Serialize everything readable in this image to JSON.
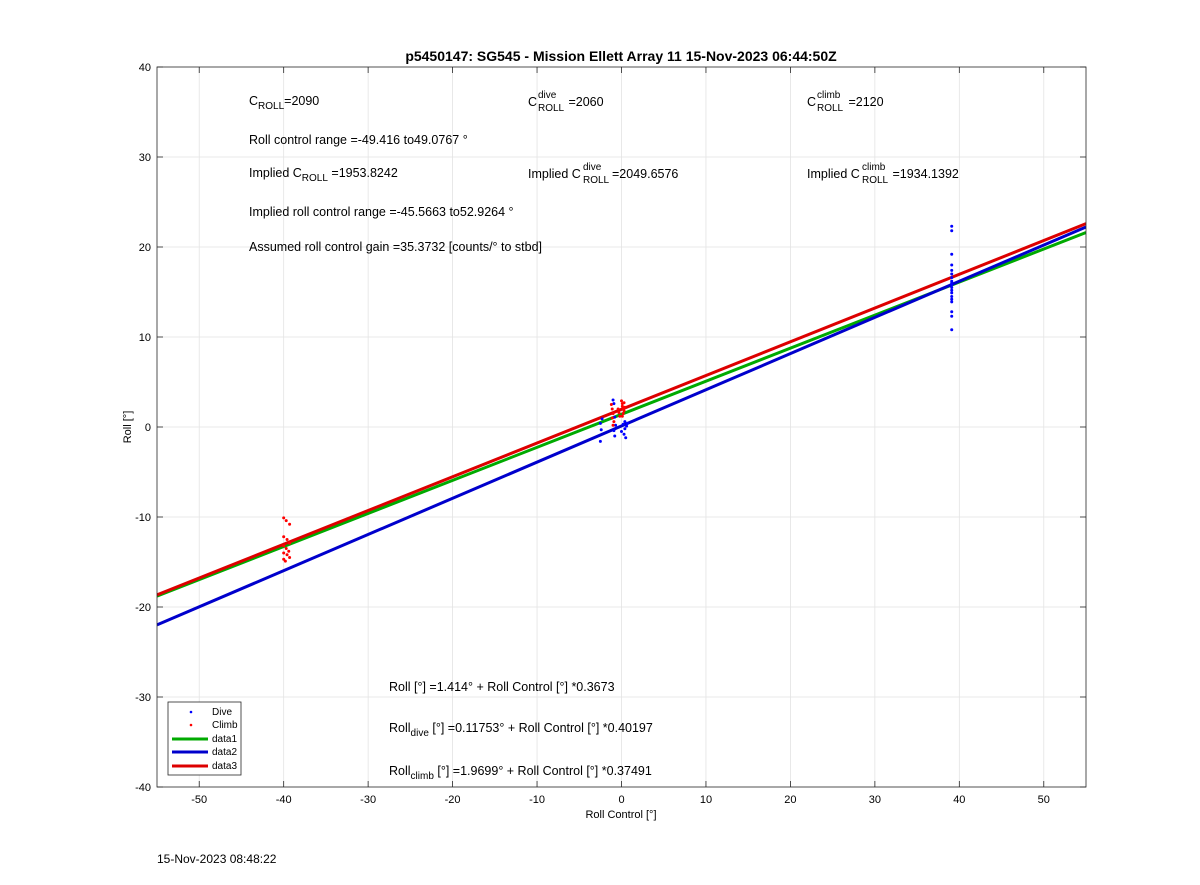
{
  "chart_data": {
    "type": "scatter",
    "title": "p5450147: SG545 - Mission Ellett Array 11 15-Nov-2023 06:44:50Z",
    "xlabel": "Roll Control [°]",
    "ylabel": "Roll [°]",
    "xlim": [
      -55,
      55
    ],
    "ylim": [
      -40,
      40
    ],
    "xticks": [
      -50,
      -40,
      -30,
      -20,
      -10,
      0,
      10,
      20,
      30,
      40,
      50
    ],
    "yticks": [
      -40,
      -30,
      -20,
      -10,
      0,
      10,
      20,
      30,
      40
    ],
    "grid": true,
    "legend_position": "bottom-left",
    "scatter_series": [
      {
        "name": "Dive",
        "color": "#0000ff",
        "points": [
          [
            39.1,
            22.3
          ],
          [
            39.1,
            21.8
          ],
          [
            39.1,
            19.2
          ],
          [
            39.1,
            18.0
          ],
          [
            39.1,
            17.4
          ],
          [
            39.1,
            17.0
          ],
          [
            39.1,
            16.6
          ],
          [
            39.1,
            16.2
          ],
          [
            39.1,
            16.0
          ],
          [
            39.1,
            15.8
          ],
          [
            39.1,
            15.5
          ],
          [
            39.1,
            15.2
          ],
          [
            39.1,
            14.9
          ],
          [
            39.1,
            14.5
          ],
          [
            39.1,
            14.2
          ],
          [
            39.1,
            13.9
          ],
          [
            39.1,
            12.8
          ],
          [
            39.1,
            12.3
          ],
          [
            39.1,
            10.8
          ],
          [
            -2.5,
            0.4
          ],
          [
            -2.4,
            -0.3
          ],
          [
            -2.5,
            -1.6
          ],
          [
            -2.3,
            0.9
          ],
          [
            -1.0,
            3.0
          ],
          [
            -0.9,
            2.6
          ],
          [
            -0.8,
            1.1
          ],
          [
            -0.9,
            -0.4
          ],
          [
            -0.8,
            -1.0
          ],
          [
            -0.7,
            0.2
          ],
          [
            0.0,
            -0.5
          ],
          [
            0.2,
            0.3
          ],
          [
            0.3,
            -0.8
          ],
          [
            0.4,
            0.6
          ],
          [
            0.5,
            -1.2
          ],
          [
            0.6,
            0.1
          ],
          [
            0.7,
            0.4
          ],
          [
            0.4,
            -0.2
          ]
        ]
      },
      {
        "name": "Climb",
        "color": "#ff0000",
        "points": [
          [
            -40.0,
            -10.1
          ],
          [
            -39.7,
            -10.4
          ],
          [
            -39.3,
            -10.8
          ],
          [
            -40.0,
            -12.2
          ],
          [
            -39.6,
            -12.5
          ],
          [
            -39.3,
            -12.9
          ],
          [
            -40.0,
            -13.2
          ],
          [
            -39.7,
            -13.5
          ],
          [
            -39.4,
            -13.8
          ],
          [
            -40.0,
            -14.0
          ],
          [
            -39.6,
            -14.2
          ],
          [
            -39.3,
            -14.5
          ],
          [
            -40.0,
            -14.7
          ],
          [
            -39.8,
            -14.9
          ],
          [
            -1.2,
            2.5
          ],
          [
            -1.1,
            2.0
          ],
          [
            -1.0,
            1.5
          ],
          [
            -1.1,
            1.0
          ],
          [
            -0.9,
            0.6
          ],
          [
            -1.0,
            0.2
          ],
          [
            -0.4,
            2.0
          ],
          [
            -0.3,
            1.6
          ],
          [
            -0.2,
            1.2
          ],
          [
            0.0,
            2.9
          ],
          [
            0.1,
            2.6
          ],
          [
            0.1,
            2.3
          ],
          [
            0.2,
            2.0
          ],
          [
            0.3,
            1.8
          ],
          [
            0.2,
            1.5
          ],
          [
            0.1,
            1.2
          ],
          [
            0.3,
            2.7
          ],
          [
            0.4,
            2.2
          ]
        ]
      }
    ],
    "line_series": [
      {
        "name": "data1",
        "color": "#00aa00",
        "intercept": 1.414,
        "slope": 0.3673
      },
      {
        "name": "data2",
        "color": "#0000cc",
        "intercept": 0.11753,
        "slope": 0.40197
      },
      {
        "name": "data3",
        "color": "#dd0000",
        "intercept": 1.9699,
        "slope": 0.37491
      }
    ],
    "annotations": {
      "c_roll_main": "C",
      "c_roll_sub": "ROLL",
      "c_roll_val": "=2090",
      "c_roll_dive_main": "C",
      "c_roll_dive_sup": "dive",
      "c_roll_dive_sub": "ROLL",
      "c_roll_dive_val": " =2060",
      "c_roll_climb_main": "C",
      "c_roll_climb_sup": "climb",
      "c_roll_climb_sub": "ROLL",
      "c_roll_climb_val": " =2120",
      "range_text": "Roll control range =-49.416 to49.0767 °",
      "implied_c_prefix": "Implied C",
      "implied_c_sub": "ROLL",
      "implied_c_val": " =1953.8242",
      "implied_dive_prefix": "Implied C",
      "implied_dive_sup": "dive",
      "implied_dive_sub": "ROLL",
      "implied_dive_val": "=2049.6576",
      "implied_climb_prefix": "Implied C",
      "implied_climb_sup": "climb",
      "implied_climb_sub": "ROLL",
      "implied_climb_val": " =1934.1392",
      "implied_range_text": "Implied roll control range =-45.5663 to52.9264 °",
      "gain_text": "Assumed roll control gain =35.3732 [counts/° to stbd]",
      "eq_all": "Roll [°] =1.414° + Roll Control [°] *0.3673",
      "eq_dive_main": "Roll",
      "eq_dive_sub": "dive",
      "eq_dive_rest": " [°] =0.11753° + Roll Control [°] *0.40197",
      "eq_climb_main": "Roll",
      "eq_climb_sub": "climb",
      "eq_climb_rest": " [°] =1.9699° + Roll Control [°] *0.37491"
    }
  },
  "footer": {
    "timestamp": "15-Nov-2023 08:48:22"
  }
}
